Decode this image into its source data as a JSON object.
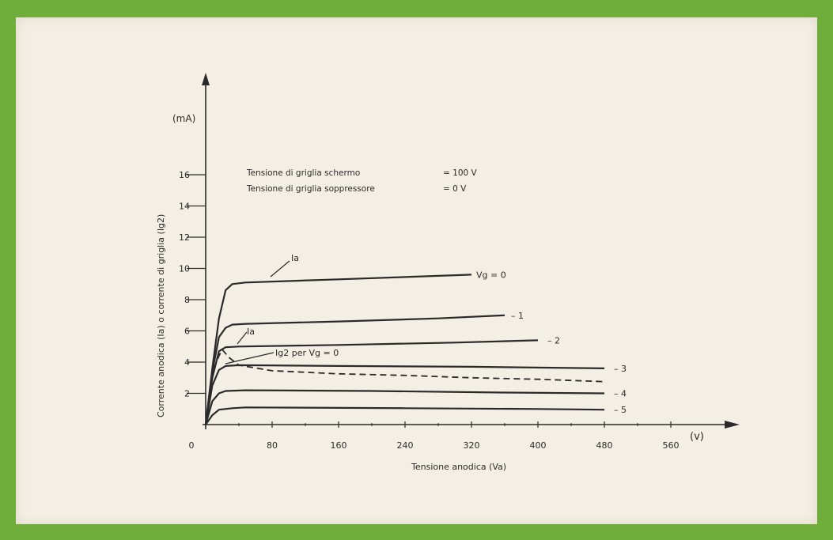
{
  "chart_data": {
    "type": "line",
    "title": "",
    "xlabel": "Tensione anodica (Va)",
    "xunit": "(v)",
    "ylabel": "Corrente anodica (Ia) o corrente di griglia (Ig2)",
    "yunit": "(mA)",
    "xlim": [
      0,
      640
    ],
    "ylim": [
      0,
      20
    ],
    "x_ticks": [
      "0",
      "80",
      "160",
      "240",
      "320",
      "400",
      "480",
      "560"
    ],
    "y_ticks": [
      "2",
      "4",
      "6",
      "8",
      "10",
      "12",
      "14",
      "16"
    ],
    "grid": false,
    "conditions": [
      {
        "label": "Tensione di griglia schermo",
        "value": "= 100 V"
      },
      {
        "label": "Tensione di griglia soppressore",
        "value": "= 0 V"
      }
    ],
    "annotations": {
      "ia_upper": "Ia",
      "ia_lower": "Ia",
      "ig2": "Ig2 per Vg = 0"
    },
    "series": [
      {
        "name": "Vg = 0",
        "style": "solid",
        "points": [
          [
            0,
            0
          ],
          [
            8,
            3.6
          ],
          [
            16,
            6.8
          ],
          [
            24,
            8.6
          ],
          [
            32,
            9.0
          ],
          [
            48,
            9.1
          ],
          [
            160,
            9.3
          ],
          [
            240,
            9.45
          ],
          [
            320,
            9.6
          ]
        ]
      },
      {
        "name": "-1",
        "style": "solid",
        "points": [
          [
            0,
            0
          ],
          [
            8,
            3.4
          ],
          [
            16,
            5.6
          ],
          [
            24,
            6.2
          ],
          [
            32,
            6.4
          ],
          [
            48,
            6.45
          ],
          [
            160,
            6.6
          ],
          [
            280,
            6.8
          ],
          [
            360,
            7.0
          ]
        ]
      },
      {
        "name": "-2",
        "style": "solid",
        "points": [
          [
            0,
            0
          ],
          [
            8,
            3.0
          ],
          [
            16,
            4.7
          ],
          [
            24,
            4.95
          ],
          [
            40,
            5.0
          ],
          [
            160,
            5.1
          ],
          [
            300,
            5.25
          ],
          [
            400,
            5.4
          ]
        ]
      },
      {
        "name": "-3",
        "style": "solid",
        "points": [
          [
            0,
            0
          ],
          [
            8,
            2.5
          ],
          [
            16,
            3.5
          ],
          [
            24,
            3.75
          ],
          [
            40,
            3.8
          ],
          [
            160,
            3.75
          ],
          [
            320,
            3.7
          ],
          [
            480,
            3.6
          ]
        ]
      },
      {
        "name": "-4",
        "style": "solid",
        "points": [
          [
            0,
            0
          ],
          [
            8,
            1.5
          ],
          [
            16,
            2.0
          ],
          [
            24,
            2.15
          ],
          [
            48,
            2.2
          ],
          [
            200,
            2.15
          ],
          [
            360,
            2.05
          ],
          [
            480,
            2.0
          ]
        ]
      },
      {
        "name": "-5",
        "style": "solid",
        "points": [
          [
            0,
            0
          ],
          [
            8,
            0.6
          ],
          [
            16,
            0.95
          ],
          [
            32,
            1.05
          ],
          [
            48,
            1.1
          ],
          [
            240,
            1.05
          ],
          [
            400,
            1.0
          ],
          [
            480,
            0.95
          ]
        ]
      },
      {
        "name": "Ig2 per Vg = 0",
        "style": "dashed",
        "points": [
          [
            10,
            3.6
          ],
          [
            16,
            4.4
          ],
          [
            20,
            4.8
          ],
          [
            28,
            4.3
          ],
          [
            40,
            3.8
          ],
          [
            80,
            3.45
          ],
          [
            160,
            3.25
          ],
          [
            240,
            3.15
          ],
          [
            320,
            3.0
          ],
          [
            400,
            2.9
          ],
          [
            480,
            2.75
          ]
        ]
      }
    ]
  }
}
